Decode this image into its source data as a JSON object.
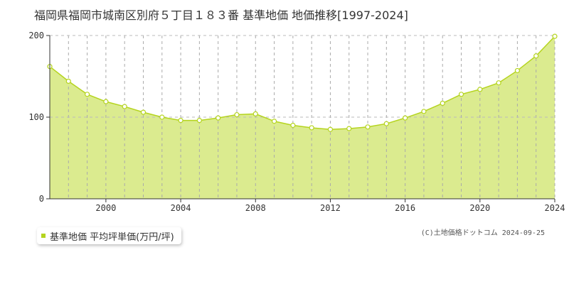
{
  "chart_data": {
    "type": "area",
    "title": "福岡県福岡市城南区別府５丁目１８３番 基準地価 地価推移[1997-2024]",
    "x": [
      1997,
      1998,
      1999,
      2000,
      2001,
      2002,
      2003,
      2004,
      2005,
      2006,
      2007,
      2008,
      2009,
      2010,
      2011,
      2012,
      2013,
      2014,
      2015,
      2016,
      2017,
      2018,
      2019,
      2020,
      2021,
      2022,
      2023,
      2024
    ],
    "series": [
      {
        "name": "基準地価 平均坪単価(万円/坪)",
        "values": [
          162,
          144,
          128,
          119,
          113,
          106,
          100,
          96,
          96,
          99,
          103,
          104,
          95,
          90,
          87,
          85,
          86,
          88,
          92,
          99,
          107,
          117,
          128,
          134,
          142,
          157,
          175,
          199
        ]
      }
    ],
    "xticks": [
      2000,
      2004,
      2008,
      2012,
      2016,
      2020,
      2024
    ],
    "xtick_labels": [
      "2000",
      "2004",
      "2008",
      "2012",
      "2016",
      "2020",
      "2024"
    ],
    "yticks": [
      0,
      100,
      200
    ],
    "ytick_labels": [
      "0",
      "100",
      "200"
    ],
    "xlim": [
      1997,
      2024
    ],
    "ylim": [
      0,
      200
    ],
    "grid": true,
    "legend": "bottom-left",
    "colors": {
      "fill": "#dbeb8f",
      "line": "#b5d41e",
      "marker_fill": "#ffffff",
      "marker_stroke": "#b5d41e",
      "grid": "#cccccc",
      "axis": "#333333"
    }
  },
  "legend_label": "基準地価 平均坪単価(万円/坪)",
  "copyright": "(C)土地価格ドットコム 2024-09-25"
}
